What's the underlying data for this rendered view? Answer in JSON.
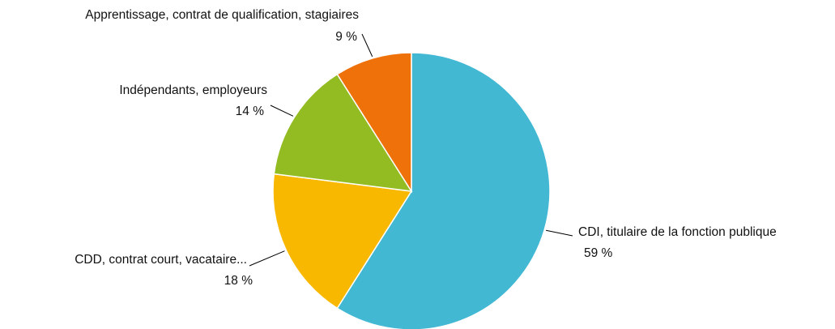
{
  "chart_data": {
    "type": "pie",
    "title": "",
    "slices": [
      {
        "name": "CDI, titulaire de la fonction publique",
        "value": 59,
        "value_label": "59 %",
        "color": "#42B8D3"
      },
      {
        "name": "CDD, contrat court, vacataire...",
        "value": 18,
        "value_label": "18 %",
        "color": "#F9B800"
      },
      {
        "name": "Indépendants, employeurs",
        "value": 14,
        "value_label": "14 %",
        "color": "#92BC22"
      },
      {
        "name": "Apprentissage, contrat de qualification, stagiaires",
        "value": 9,
        "value_label": "9 %",
        "color": "#EE7109"
      }
    ],
    "start": "12 o'clock",
    "direction": "clockwise",
    "legend": "none"
  }
}
